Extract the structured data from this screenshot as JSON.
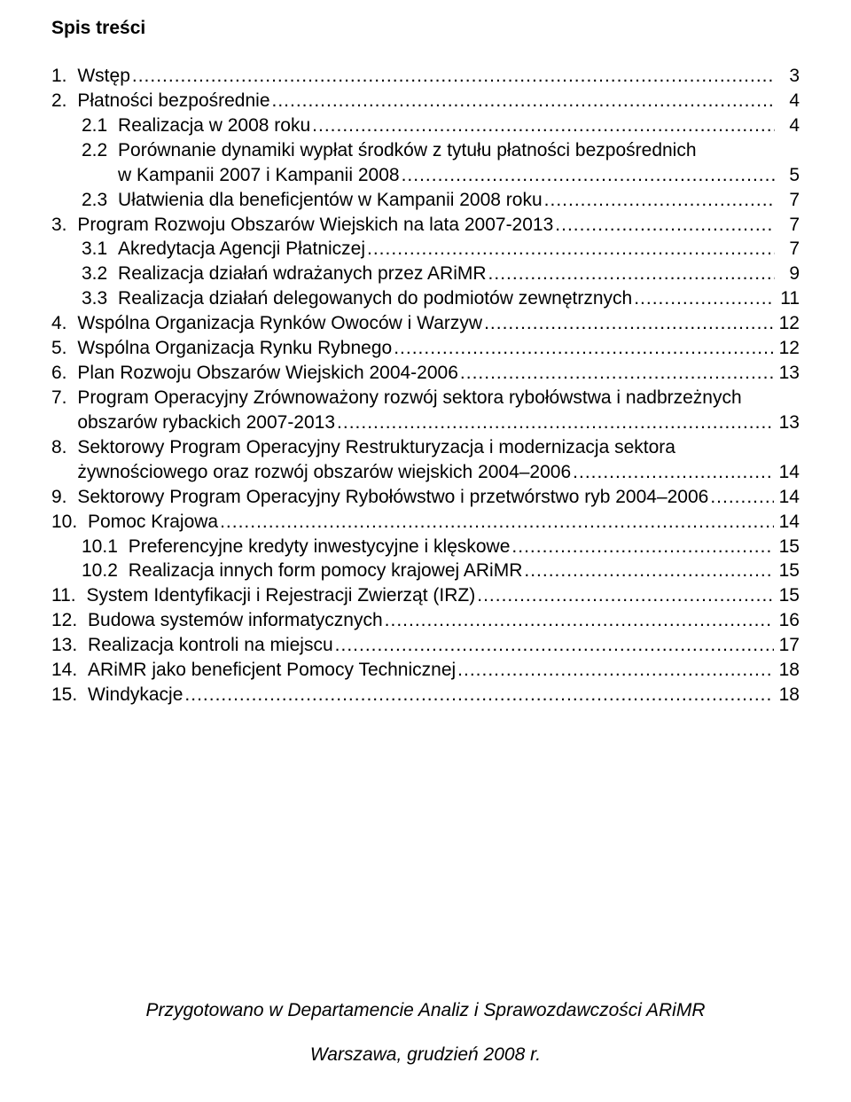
{
  "heading": "Spis treści",
  "dots": "..................................................................................................................................................",
  "entries": [
    {
      "num": "1.",
      "text": "Wstęp",
      "page": "3",
      "wrap": null,
      "indent": 0
    },
    {
      "num": "2.",
      "text": "Płatności bezpośrednie",
      "page": "4",
      "wrap": null,
      "indent": 0
    },
    {
      "num": "2.1",
      "text": "Realizacja w 2008 roku",
      "page": "4",
      "wrap": null,
      "indent": 2
    },
    {
      "num": "2.2",
      "text": "Porównanie dynamiki wypłat środków z tytułu płatności bezpośrednich",
      "page": "5",
      "wrap": "w Kampanii 2007 i Kampanii 2008",
      "indent": 2
    },
    {
      "num": "2.3",
      "text": "Ułatwienia dla beneficjentów w Kampanii 2008 roku",
      "page": "7",
      "wrap": null,
      "indent": 2
    },
    {
      "num": "3.",
      "text": "Program Rozwoju Obszarów Wiejskich na lata 2007-2013",
      "page": "7",
      "wrap": null,
      "indent": 0
    },
    {
      "num": "3.1",
      "text": "Akredytacja Agencji Płatniczej",
      "page": "7",
      "wrap": null,
      "indent": 3
    },
    {
      "num": "3.2",
      "text": "Realizacja działań wdrażanych przez ARiMR",
      "page": "9",
      "wrap": null,
      "indent": 3
    },
    {
      "num": "3.3",
      "text": "Realizacja działań delegowanych do podmiotów zewnętrznych",
      "page": "11",
      "wrap": null,
      "indent": 3
    },
    {
      "num": "4.",
      "text": "Wspólna Organizacja Rynków Owoców i Warzyw",
      "page": "12",
      "wrap": null,
      "indent": 0
    },
    {
      "num": "5.",
      "text": "Wspólna Organizacja Rynku Rybnego",
      "page": "12",
      "wrap": null,
      "indent": 0
    },
    {
      "num": "6.",
      "text": "Plan Rozwoju Obszarów Wiejskich 2004-2006",
      "page": "13",
      "wrap": null,
      "indent": 0
    },
    {
      "num": "7.",
      "text": "Program Operacyjny Zrównoważony rozwój sektora rybołówstwa i nadbrzeżnych",
      "page": "13",
      "wrap": "obszarów rybackich 2007-2013",
      "indent": 0
    },
    {
      "num": "8.",
      "text": "Sektorowy Program Operacyjny Restrukturyzacja i modernizacja sektora",
      "page": "14",
      "wrap": "żywnościowego oraz rozwój obszarów wiejskich 2004–2006",
      "indent": 0
    },
    {
      "num": "9.",
      "text": "Sektorowy Program Operacyjny Rybołówstwo i przetwórstwo ryb 2004–2006",
      "page": "14",
      "wrap": null,
      "indent": 0
    },
    {
      "num": "10.",
      "text": "Pomoc Krajowa",
      "page": "14",
      "wrap": null,
      "indent": 0
    },
    {
      "num": "10.1",
      "text": "Preferencyjne kredyty inwestycyjne i klęskowe",
      "page": "15",
      "wrap": null,
      "indent": 3
    },
    {
      "num": "10.2",
      "text": "Realizacja innych form pomocy krajowej ARiMR",
      "page": "15",
      "wrap": null,
      "indent": 3
    },
    {
      "num": "11.",
      "text": "System Identyfikacji i Rejestracji Zwierząt (IRZ)",
      "page": "15",
      "wrap": null,
      "indent": 0
    },
    {
      "num": "12.",
      "text": "Budowa systemów informatycznych",
      "page": "16",
      "wrap": null,
      "indent": 0
    },
    {
      "num": "13.",
      "text": "Realizacja kontroli na miejscu",
      "page": "17",
      "wrap": null,
      "indent": 0
    },
    {
      "num": "14.",
      "text": "ARiMR jako beneficjent Pomocy Technicznej",
      "page": "18",
      "wrap": null,
      "indent": 0
    },
    {
      "num": "15.",
      "text": "Windykacje",
      "page": "18",
      "wrap": null,
      "indent": 0
    }
  ],
  "footer1": "Przygotowano w Departamencie Analiz i Sprawozdawczości ARiMR",
  "footer2": "Warszawa, grudzień 2008 r."
}
